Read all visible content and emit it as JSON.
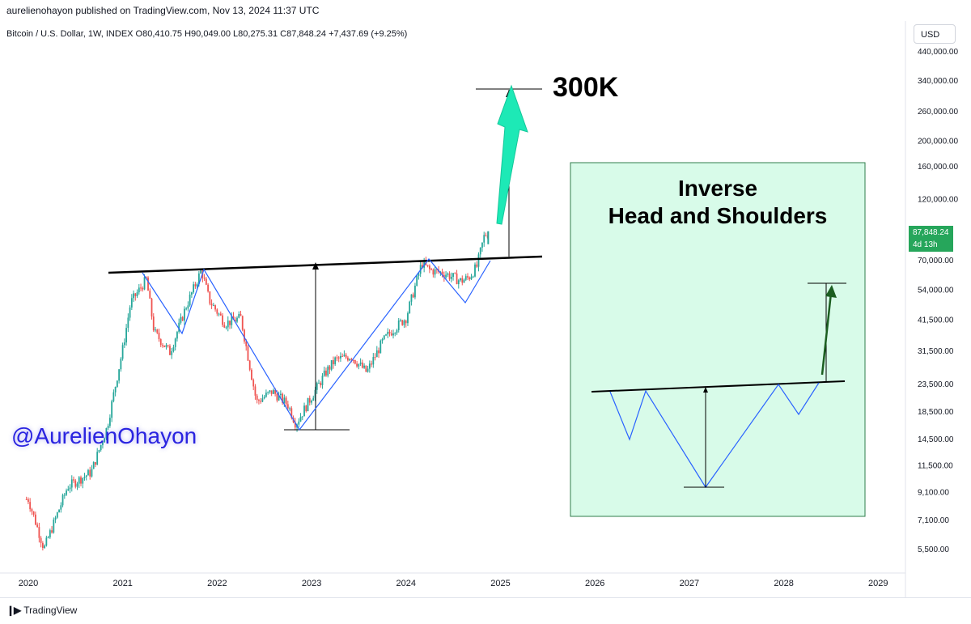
{
  "publisher_line": "aurelienohayon published on TradingView.com, Nov 13, 2024 11:37 UTC",
  "ohlc_line": "Bitcoin / U.S. Dollar, 1W, INDEX  O80,410.75  H90,049.00  L80,275.31  C87,848.24  +7,437.69 (+9.25%)",
  "currency_button": "USD",
  "watermark": "@AurelienOhayon",
  "target_label": "300K",
  "inset_title_line1": "Inverse",
  "inset_title_line2": "Head and Shoulders",
  "price_tag": {
    "value": "87,848.24",
    "countdown": "4d 13h",
    "color": "#26a65b"
  },
  "footer_brand": "TradingView",
  "colors": {
    "up_candle": "#26a69a",
    "down_candle": "#ef5350",
    "pattern_line": "#2962ff",
    "target_arrow": "#1de9b6",
    "inset_bg": "#d8fbe9",
    "inset_border": "#2f7d4b",
    "inset_arrow": "#1b5e20"
  },
  "chart_data": {
    "type": "line",
    "title": "Bitcoin / U.S. Dollar, 1W, INDEX",
    "scale": "log",
    "x_ticks": [
      "2020",
      "2021",
      "2022",
      "2023",
      "2024",
      "2025",
      "2026",
      "2027",
      "2028",
      "2029"
    ],
    "y_ticks": [
      "440,000.00",
      "340,000.00",
      "260,000.00",
      "200,000.00",
      "160,000.00",
      "120,000.00",
      "70,000.00",
      "54,000.00",
      "41,500.00",
      "31,500.00",
      "23,500.00",
      "18,500.00",
      "14,500.00",
      "11,500.00",
      "9,100.00",
      "7,100.00",
      "5,500.00"
    ],
    "ylim": [
      4600,
      480000
    ],
    "series": [
      {
        "type": "line",
        "x": [
          "2020-01",
          "2020-03",
          "2020-06",
          "2020-09",
          "2020-11",
          "2021-01",
          "2021-02",
          "2021-04",
          "2021-05",
          "2021-07",
          "2021-09",
          "2021-11",
          "2021-12",
          "2022-02",
          "2022-04",
          "2022-06",
          "2022-08",
          "2022-10",
          "2022-11",
          "2023-01",
          "2023-03",
          "2023-04",
          "2023-06",
          "2023-08",
          "2023-10",
          "2023-11",
          "2024-01",
          "2024-03",
          "2024-04",
          "2024-06",
          "2024-08",
          "2024-09",
          "2024-10",
          "2024-11"
        ],
        "y": [
          8500,
          5500,
          9500,
          10800,
          16000,
          32000,
          48000,
          59000,
          37000,
          31000,
          46000,
          64000,
          49000,
          40000,
          42000,
          20000,
          22000,
          19500,
          16500,
          21000,
          26500,
          29000,
          30000,
          26000,
          34000,
          37000,
          42000,
          68000,
          64000,
          62000,
          58000,
          60000,
          66000,
          87848
        ]
      }
    ],
    "annotations": [
      "300K",
      "Inverse Head and Shoulders"
    ]
  }
}
